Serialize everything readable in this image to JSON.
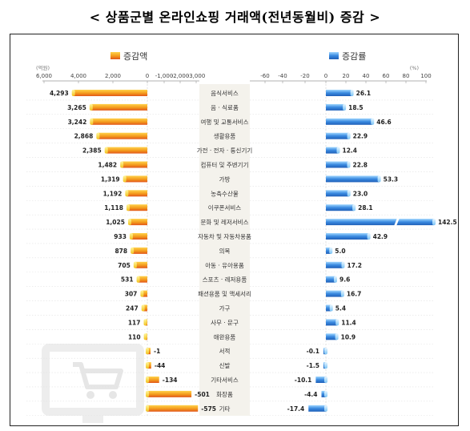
{
  "title": "< 상품군별 온라인쇼핑 거래액(전년동월비) 증감 >",
  "chart_data": {
    "type": "bar",
    "categories": [
      "음식서비스",
      "음 · 식료품",
      "여행 및 교통서비스",
      "생활용품",
      "가전 · 전자 · 통신기기",
      "컴퓨터 및 주변기기",
      "가방",
      "농축수산물",
      "이쿠폰서비스",
      "문화 및 레저서비스",
      "자동차 및 자동차용품",
      "의복",
      "아동 · 유아용품",
      "스포츠 · 레저용품",
      "패션용품 및 액세서리",
      "가구",
      "사무 · 문구",
      "애완용품",
      "서적",
      "신발",
      "기타서비스",
      "화장품",
      "기타"
    ],
    "series": [
      {
        "name": "증감액",
        "values": [
          4293,
          3265,
          3242,
          2868,
          2385,
          1482,
          1319,
          1192,
          1118,
          1025,
          933,
          878,
          705,
          531,
          307,
          247,
          117,
          110,
          -1,
          -44,
          -134,
          -501,
          -575
        ],
        "labels": [
          "4,293",
          "3,265",
          "3,242",
          "2,868",
          "2,385",
          "1,482",
          "1,319",
          "1,192",
          "1,118",
          "1,025",
          "933",
          "878",
          "705",
          "531",
          "307",
          "247",
          "117",
          "110",
          "-1",
          "-44",
          "-134",
          "-501",
          "-575"
        ],
        "unit": "(억원)",
        "color": "#ef8a1a",
        "ticks": [
          "6,000",
          "4,000",
          "2,000",
          "0",
          "-1,000",
          "-2,000",
          "-3,000"
        ]
      },
      {
        "name": "증감률",
        "values": [
          26.1,
          18.5,
          46.6,
          22.9,
          12.4,
          22.8,
          53.3,
          23.0,
          28.1,
          142.5,
          42.9,
          5.0,
          17.2,
          9.6,
          16.7,
          5.4,
          11.4,
          10.9,
          -0.1,
          -1.5,
          -10.1,
          -4.4,
          -17.4
        ],
        "labels": [
          "26.1",
          "18.5",
          "46.6",
          "22.9",
          "12.4",
          "22.8",
          "53.3",
          "23.0",
          "28.1",
          "142.5",
          "42.9",
          "5.0",
          "17.2",
          "9.6",
          "16.7",
          "5.4",
          "11.4",
          "10.9",
          "-0.1",
          "-1.5",
          "-10.1",
          "-4.4",
          "-17.4"
        ],
        "unit": "(%)",
        "color": "#2f7bd6",
        "ticks": [
          "-60",
          "-40",
          "-20",
          "0",
          "20",
          "40",
          "60",
          "80",
          "100"
        ]
      }
    ]
  }
}
